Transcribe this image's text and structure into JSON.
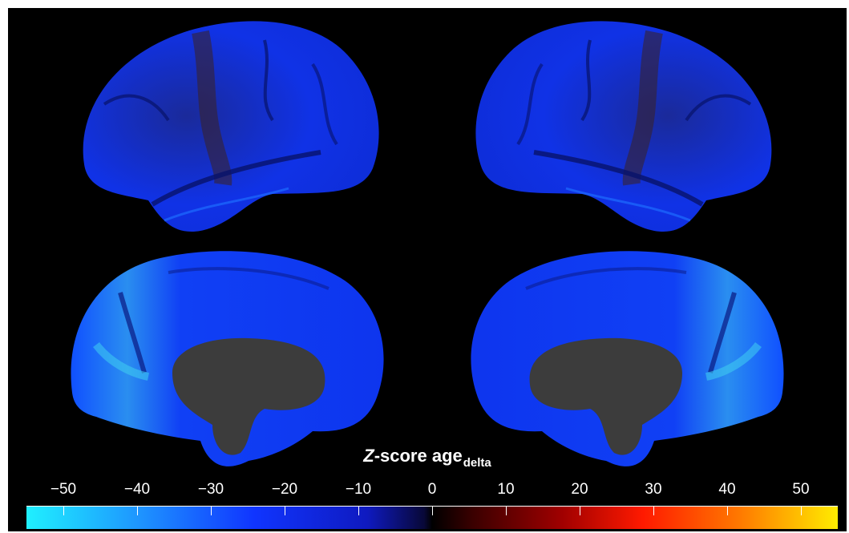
{
  "figure": {
    "colorbar": {
      "title_prefix": "Z",
      "title_main": "-score age",
      "title_sub": "delta",
      "ticks": [
        "−50",
        "−40",
        "−30",
        "−20",
        "−10",
        "0",
        "10",
        "20",
        "30",
        "40",
        "50"
      ],
      "tick_values": [
        -50,
        -40,
        -30,
        -20,
        -10,
        0,
        10,
        20,
        30,
        40,
        50
      ],
      "range": [
        -55,
        55
      ],
      "colors": {
        "negative_end": "#1ff0ff",
        "negative_mid": "#1035ff",
        "zero": "#000000",
        "positive_mid": "#ff1a00",
        "positive_end": "#ffec00"
      }
    },
    "views": [
      "left-lateral",
      "right-lateral",
      "left-medial",
      "right-medial"
    ],
    "colors": {
      "background": "#000000",
      "cortex_blue": "#1530e0",
      "medial_wall": "#3c3c3c"
    }
  }
}
